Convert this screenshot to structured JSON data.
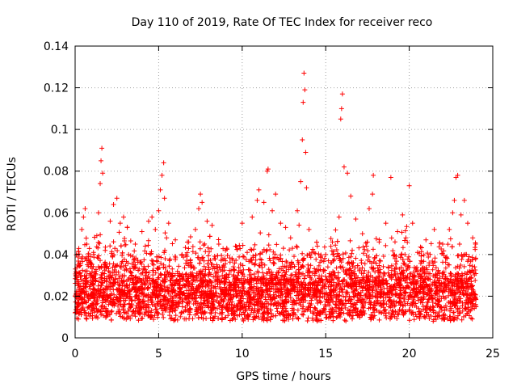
{
  "chart_data": {
    "type": "scatter",
    "title": "Day 110 of 2019, Rate Of TEC Index for receiver reco",
    "xlabel": "GPS time / hours",
    "ylabel": "ROTI / TECUs",
    "xlim": [
      0,
      25
    ],
    "ylim": [
      0,
      0.14
    ],
    "grid": true,
    "marker": "+",
    "color": "#ff0000",
    "x_ticks": [
      0,
      5,
      10,
      15,
      20,
      25
    ],
    "x_tick_labels": [
      "0",
      "5",
      "10",
      "15",
      "20",
      "25"
    ],
    "y_ticks": [
      0,
      0.02,
      0.04,
      0.06,
      0.08,
      0.1,
      0.12,
      0.14
    ],
    "y_tick_labels": [
      "0",
      "0.02",
      "0.04",
      "0.06",
      "0.08",
      "0.1",
      "0.12",
      "0.14"
    ],
    "series": [
      {
        "name": "ROTI",
        "notes": "dense band 0.005-0.035 TECU over 0-24 h; listed points are representative sample incl. visible peaks",
        "points": [
          [
            0.0,
            0.012
          ],
          [
            0.1,
            0.028
          ],
          [
            0.2,
            0.009
          ],
          [
            0.3,
            0.031
          ],
          [
            0.4,
            0.052
          ],
          [
            0.5,
            0.058
          ],
          [
            0.6,
            0.062
          ],
          [
            0.7,
            0.045
          ],
          [
            0.9,
            0.036
          ],
          [
            1.1,
            0.041
          ],
          [
            1.3,
            0.049
          ],
          [
            1.4,
            0.06
          ],
          [
            1.5,
            0.074
          ],
          [
            1.55,
            0.085
          ],
          [
            1.6,
            0.091
          ],
          [
            1.65,
            0.079
          ],
          [
            1.8,
            0.042
          ],
          [
            2.1,
            0.056
          ],
          [
            2.3,
            0.064
          ],
          [
            2.5,
            0.067
          ],
          [
            2.7,
            0.055
          ],
          [
            2.9,
            0.058
          ],
          [
            3.2,
            0.04
          ],
          [
            3.6,
            0.045
          ],
          [
            4.0,
            0.051
          ],
          [
            4.2,
            0.044
          ],
          [
            4.4,
            0.056
          ],
          [
            4.6,
            0.058
          ],
          [
            4.8,
            0.052
          ],
          [
            5.0,
            0.061
          ],
          [
            5.1,
            0.071
          ],
          [
            5.2,
            0.078
          ],
          [
            5.3,
            0.084
          ],
          [
            5.35,
            0.067
          ],
          [
            5.6,
            0.055
          ],
          [
            6.0,
            0.047
          ],
          [
            6.4,
            0.04
          ],
          [
            6.8,
            0.046
          ],
          [
            7.2,
            0.052
          ],
          [
            7.4,
            0.062
          ],
          [
            7.5,
            0.069
          ],
          [
            7.6,
            0.065
          ],
          [
            7.9,
            0.056
          ],
          [
            8.2,
            0.054
          ],
          [
            8.6,
            0.045
          ],
          [
            9.0,
            0.042
          ],
          [
            9.6,
            0.044
          ],
          [
            10.0,
            0.055
          ],
          [
            10.3,
            0.041
          ],
          [
            10.6,
            0.058
          ],
          [
            10.9,
            0.066
          ],
          [
            11.0,
            0.071
          ],
          [
            11.3,
            0.065
          ],
          [
            11.5,
            0.08
          ],
          [
            11.55,
            0.081
          ],
          [
            11.8,
            0.061
          ],
          [
            12.0,
            0.069
          ],
          [
            12.3,
            0.055
          ],
          [
            12.6,
            0.053
          ],
          [
            12.9,
            0.048
          ],
          [
            13.3,
            0.061
          ],
          [
            13.5,
            0.075
          ],
          [
            13.6,
            0.095
          ],
          [
            13.65,
            0.113
          ],
          [
            13.7,
            0.127
          ],
          [
            13.75,
            0.119
          ],
          [
            13.8,
            0.089
          ],
          [
            13.85,
            0.072
          ],
          [
            14.0,
            0.052
          ],
          [
            14.5,
            0.044
          ],
          [
            15.0,
            0.04
          ],
          [
            15.4,
            0.046
          ],
          [
            15.8,
            0.058
          ],
          [
            15.9,
            0.105
          ],
          [
            15.95,
            0.11
          ],
          [
            16.0,
            0.117
          ],
          [
            16.1,
            0.082
          ],
          [
            16.3,
            0.079
          ],
          [
            16.5,
            0.068
          ],
          [
            16.8,
            0.057
          ],
          [
            17.2,
            0.05
          ],
          [
            17.6,
            0.062
          ],
          [
            17.8,
            0.069
          ],
          [
            17.85,
            0.078
          ],
          [
            18.2,
            0.046
          ],
          [
            18.6,
            0.055
          ],
          [
            18.9,
            0.077
          ],
          [
            19.3,
            0.051
          ],
          [
            19.6,
            0.059
          ],
          [
            19.8,
            0.048
          ],
          [
            20.0,
            0.073
          ],
          [
            20.2,
            0.055
          ],
          [
            20.5,
            0.041
          ],
          [
            21.0,
            0.047
          ],
          [
            21.5,
            0.052
          ],
          [
            22.0,
            0.045
          ],
          [
            22.4,
            0.052
          ],
          [
            22.6,
            0.06
          ],
          [
            22.7,
            0.066
          ],
          [
            22.8,
            0.077
          ],
          [
            22.9,
            0.078
          ],
          [
            23.1,
            0.059
          ],
          [
            23.3,
            0.066
          ],
          [
            23.5,
            0.055
          ],
          [
            23.8,
            0.048
          ],
          [
            24.0,
            0.015
          ]
        ]
      }
    ]
  }
}
